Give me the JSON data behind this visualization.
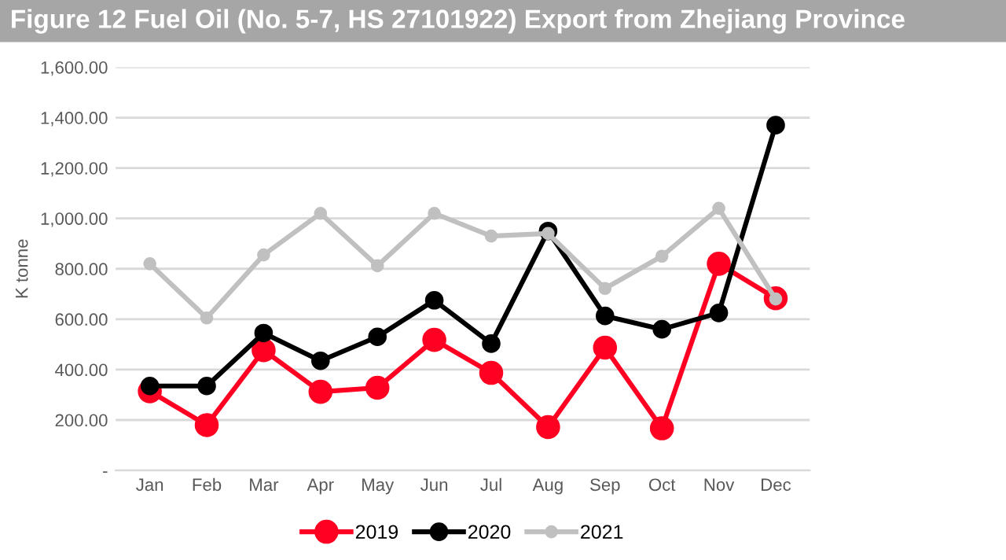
{
  "chart_data": {
    "type": "line",
    "title": "Figure 12 Fuel Oil (No. 5-7, HS 27101922) Export from Zhejiang Province",
    "ylabel": "K tonne",
    "categories": [
      "Jan",
      "Feb",
      "Mar",
      "Apr",
      "May",
      "Jun",
      "Jul",
      "Aug",
      "Sep",
      "Oct",
      "Nov",
      "Dec"
    ],
    "series": [
      {
        "name": "2019",
        "color": "#ff0022",
        "values": [
          314,
          180,
          477,
          312,
          328,
          518,
          387,
          172,
          487,
          167,
          820,
          683
        ]
      },
      {
        "name": "2020",
        "color": "#000000",
        "values": [
          335,
          335,
          545,
          435,
          530,
          675,
          503,
          950,
          613,
          560,
          625,
          1370
        ]
      },
      {
        "name": "2021",
        "color": "#c0c0c0",
        "values": [
          820,
          605,
          855,
          1020,
          812,
          1020,
          930,
          940,
          722,
          850,
          1040,
          680
        ]
      }
    ],
    "ylim": [
      0,
      1600
    ],
    "yticks": [
      {
        "value": 0,
        "label": "-"
      },
      {
        "value": 200,
        "label": "200.00"
      },
      {
        "value": 400,
        "label": "400.00"
      },
      {
        "value": 600,
        "label": "600.00"
      },
      {
        "value": 800,
        "label": "800.00"
      },
      {
        "value": 1000,
        "label": "1,000.00"
      },
      {
        "value": 1200,
        "label": "1,200.00"
      },
      {
        "value": 1400,
        "label": "1,400.00"
      },
      {
        "value": 1600,
        "label": "1,600.00"
      }
    ],
    "grid": "y",
    "legend": "bottom",
    "marker": "circle",
    "line_style": "solid"
  }
}
